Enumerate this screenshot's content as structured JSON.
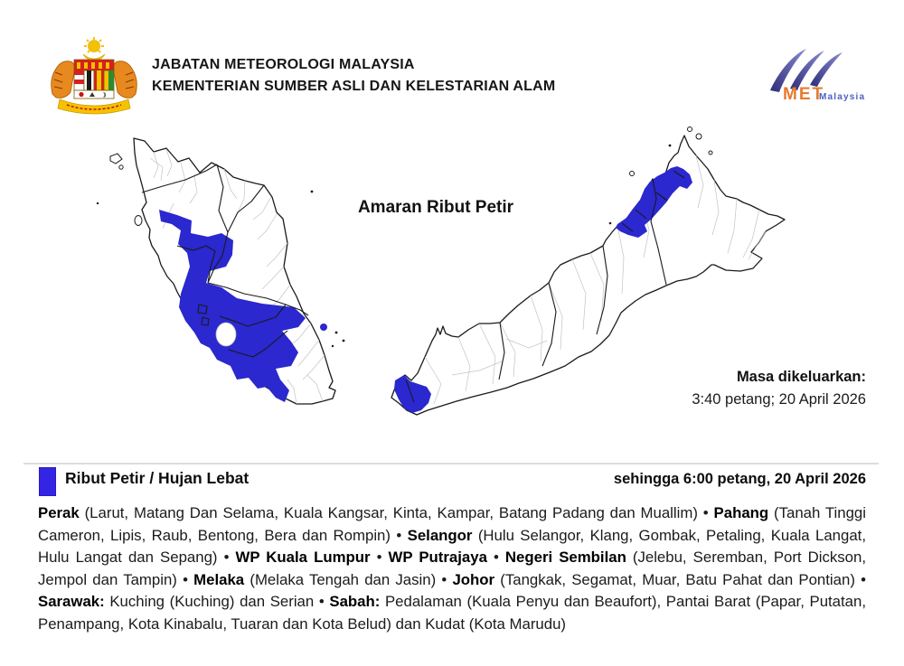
{
  "colors": {
    "warning_fill": "#2A28CE",
    "legend_fill": "#3424E4",
    "state_border": "#1a1a1a",
    "district_border": "#c3c3c3",
    "divider": "#dcdcdc"
  },
  "header": {
    "agency_line1": "JABATAN METEOROLOGI MALAYSIA",
    "agency_line2": "KEMENTERIAN SUMBER ASLI DAN KELESTARIAN ALAM",
    "crest_icon": "malaysia-coat-of-arms",
    "met_logo": {
      "met": "MET",
      "malaysia": "Malaysia"
    }
  },
  "map": {
    "title": "Amaran Ribut Petir",
    "issued_label": "Masa dikeluarkan:",
    "issued_value": "3:40 petang; 20 April 2026"
  },
  "legend": {
    "label": "Ribut Petir / Hujan Lebat",
    "valid_until": "sehingga 6:00 petang, 20 April 2026"
  },
  "warning": {
    "separator": "•",
    "areas": [
      {
        "name": "Perak",
        "detail": "(Larut, Matang Dan Selama, Kuala Kangsar, Kinta, Kampar, Batang Padang dan Muallim)"
      },
      {
        "name": "Pahang",
        "detail": "(Tanah Tinggi Cameron, Lipis, Raub, Bentong, Bera dan Rompin)"
      },
      {
        "name": "Selangor",
        "detail": "(Hulu Selangor, Klang, Gombak, Petaling, Kuala Langat, Hulu Langat dan Sepang)"
      },
      {
        "name": "WP Kuala Lumpur",
        "detail": ""
      },
      {
        "name": "WP Putrajaya",
        "detail": ""
      },
      {
        "name": "Negeri Sembilan",
        "detail": "(Jelebu, Seremban, Port Dickson, Jempol dan Tampin)"
      },
      {
        "name": "Melaka",
        "detail": "(Melaka Tengah dan Jasin)"
      },
      {
        "name": "Johor",
        "detail": "(Tangkak, Segamat, Muar, Batu Pahat dan Pontian)"
      },
      {
        "name": "Sarawak:",
        "detail": "Kuching (Kuching) dan Serian"
      },
      {
        "name": "Sabah:",
        "detail": "Pedalaman (Kuala Penyu dan Beaufort), Pantai Barat (Papar, Putatan, Penampang, Kota Kinabalu, Tuaran dan Kota Belud) dan Kudat (Kota Marudu)"
      }
    ]
  }
}
